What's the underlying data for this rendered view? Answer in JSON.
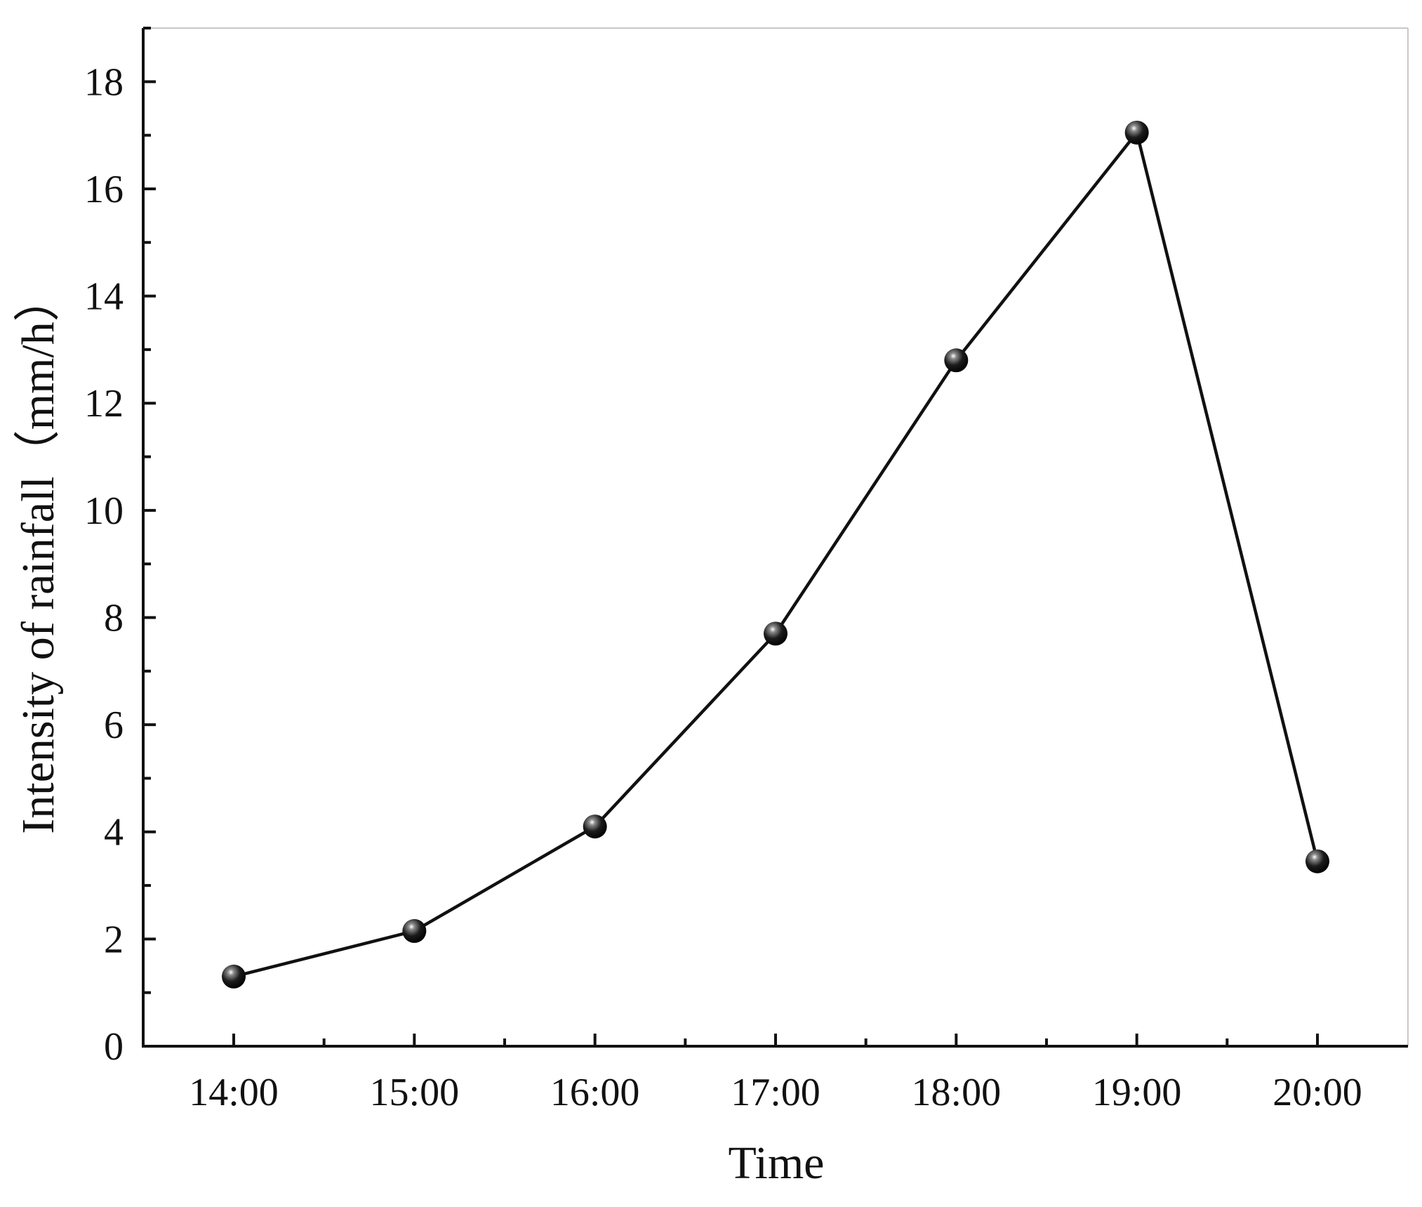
{
  "chart_data": {
    "type": "line",
    "title": "",
    "xlabel": "Time",
    "ylabel": "Intensity of rainfall（mm/h）",
    "categories": [
      "14:00",
      "15:00",
      "16:00",
      "17:00",
      "18:00",
      "19:00",
      "20:00"
    ],
    "series": [
      {
        "values": [
          1.3,
          2.15,
          4.1,
          7.7,
          12.8,
          17.05,
          3.45
        ],
        "color": "#111111",
        "marker": "sphere"
      }
    ],
    "ylim": [
      0,
      19
    ],
    "yticks": [
      0,
      2,
      4,
      6,
      8,
      10,
      12,
      14,
      16,
      18
    ],
    "yticks_labels": [
      "0",
      "2",
      "4",
      "6",
      "8",
      "10",
      "12",
      "14",
      "16",
      "18"
    ],
    "y_minor_step": 1,
    "grid": false,
    "legend": "none"
  }
}
